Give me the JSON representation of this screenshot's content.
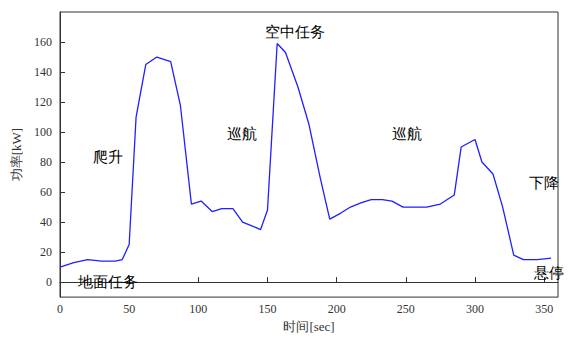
{
  "chart_data": {
    "type": "line",
    "x_label": "时间[sec]",
    "y_label": "功率[kW]",
    "x": [
      0,
      10,
      20,
      30,
      40,
      45,
      50,
      55,
      62,
      70,
      80,
      87,
      95,
      102,
      110,
      117,
      125,
      132,
      140,
      145,
      150,
      157,
      163,
      172,
      180,
      188,
      195,
      203,
      210,
      218,
      225,
      233,
      240,
      248,
      255,
      265,
      275,
      285,
      290,
      300,
      305,
      313,
      320,
      328,
      335,
      345,
      355
    ],
    "values": [
      10,
      13,
      15,
      14,
      14,
      15,
      25,
      110,
      145,
      150,
      147,
      118,
      52,
      54,
      47,
      49,
      49,
      40,
      37,
      35,
      48,
      159,
      153,
      130,
      105,
      70,
      42,
      46,
      50,
      53,
      55,
      55,
      54,
      50,
      50,
      50,
      52,
      58,
      90,
      95,
      80,
      72,
      50,
      18,
      15,
      15,
      16
    ],
    "color": "#1f1fff",
    "xlim": [
      0,
      360
    ],
    "xticks": [
      0,
      50,
      100,
      150,
      200,
      250,
      300,
      350
    ],
    "ylim": [
      -10,
      180
    ],
    "yticks": [
      0,
      20,
      40,
      60,
      80,
      100,
      120,
      140,
      160
    ],
    "grid": false,
    "annotations": [
      "爬升",
      "巡航",
      "空中任务",
      "巡航",
      "下降",
      "悬停",
      "地面任务"
    ]
  }
}
